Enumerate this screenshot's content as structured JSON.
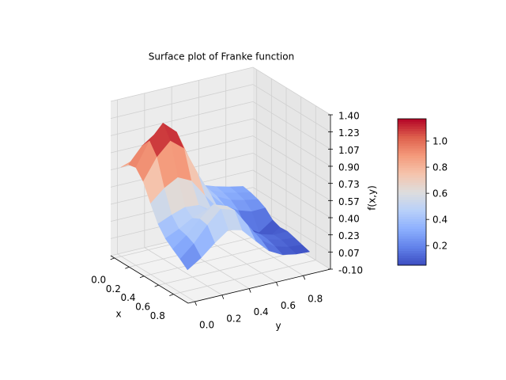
{
  "chart_data": {
    "type": "surface",
    "title": "Surface plot of Franke function",
    "x_label": "x",
    "y_label": "y",
    "z_label": "f(x,y)",
    "x": [
      0,
      0.1,
      0.2,
      0.3,
      0.4,
      0.5,
      0.6,
      0.7,
      0.8,
      0.9
    ],
    "y": [
      0,
      0.1,
      0.2,
      0.3,
      0.4,
      0.5,
      0.6,
      0.7,
      0.8,
      0.9
    ],
    "z": [
      [
        0.767,
        0.812,
        0.829,
        0.752,
        0.609,
        0.482,
        0.402,
        0.357,
        0.323,
        0.296
      ],
      [
        0.835,
        0.985,
        1.075,
        0.972,
        0.732,
        0.518,
        0.398,
        0.341,
        0.308,
        0.281
      ],
      [
        0.851,
        1.077,
        1.219,
        1.101,
        0.795,
        0.525,
        0.378,
        0.314,
        0.281,
        0.257
      ],
      [
        0.758,
        0.962,
        1.089,
        0.985,
        0.712,
        0.469,
        0.334,
        0.257,
        0.215,
        0.218
      ],
      [
        0.589,
        0.705,
        0.778,
        0.714,
        0.54,
        0.379,
        0.272,
        0.137,
        0.052,
        0.145
      ],
      [
        0.435,
        0.49,
        0.534,
        0.522,
        0.434,
        0.326,
        0.235,
        0.108,
        0.029,
        0.117
      ],
      [
        0.337,
        0.397,
        0.471,
        0.52,
        0.468,
        0.347,
        0.234,
        0.157,
        0.119,
        0.123
      ],
      [
        0.278,
        0.378,
        0.507,
        0.615,
        0.569,
        0.401,
        0.238,
        0.15,
        0.115,
        0.102
      ],
      [
        0.225,
        0.341,
        0.491,
        0.617,
        0.574,
        0.392,
        0.218,
        0.125,
        0.09,
        0.078
      ],
      [
        0.165,
        0.251,
        0.363,
        0.458,
        0.426,
        0.291,
        0.161,
        0.091,
        0.066,
        0.057
      ]
    ],
    "xlim": [
      -0.05,
      1.0
    ],
    "ylim": [
      -0.05,
      1.0
    ],
    "zlim": [
      -0.1,
      1.4
    ],
    "xticks": [
      {
        "value": 0,
        "label": "0.0"
      },
      0.2,
      0.4,
      0.6,
      0.8
    ],
    "yticks": [
      {
        "value": 0,
        "label": "0.0"
      },
      0.2,
      0.4,
      0.6,
      0.8
    ],
    "zticks": [
      {
        "value": -0.1,
        "label": "-0.10"
      },
      {
        "value": 0.0667,
        "label": "0.07"
      },
      {
        "value": 0.2333,
        "label": "0.23"
      },
      {
        "value": 0.4,
        "label": "0.40"
      },
      {
        "value": 0.5667,
        "label": "0.57"
      },
      {
        "value": 0.7333,
        "label": "0.73"
      },
      {
        "value": 0.9,
        "label": "0.90"
      },
      {
        "value": 1.0667,
        "label": "1.07"
      },
      {
        "value": 1.2333,
        "label": "1.23"
      },
      {
        "value": 1.4,
        "label": "1.40"
      }
    ],
    "colormap": "coolwarm",
    "clim": [
      0.05,
      1.17
    ],
    "colorbar_ticks": [
      0.2,
      0.4,
      0.6,
      0.8,
      {
        "value": 1,
        "label": "1.0"
      }
    ],
    "grid": true
  }
}
